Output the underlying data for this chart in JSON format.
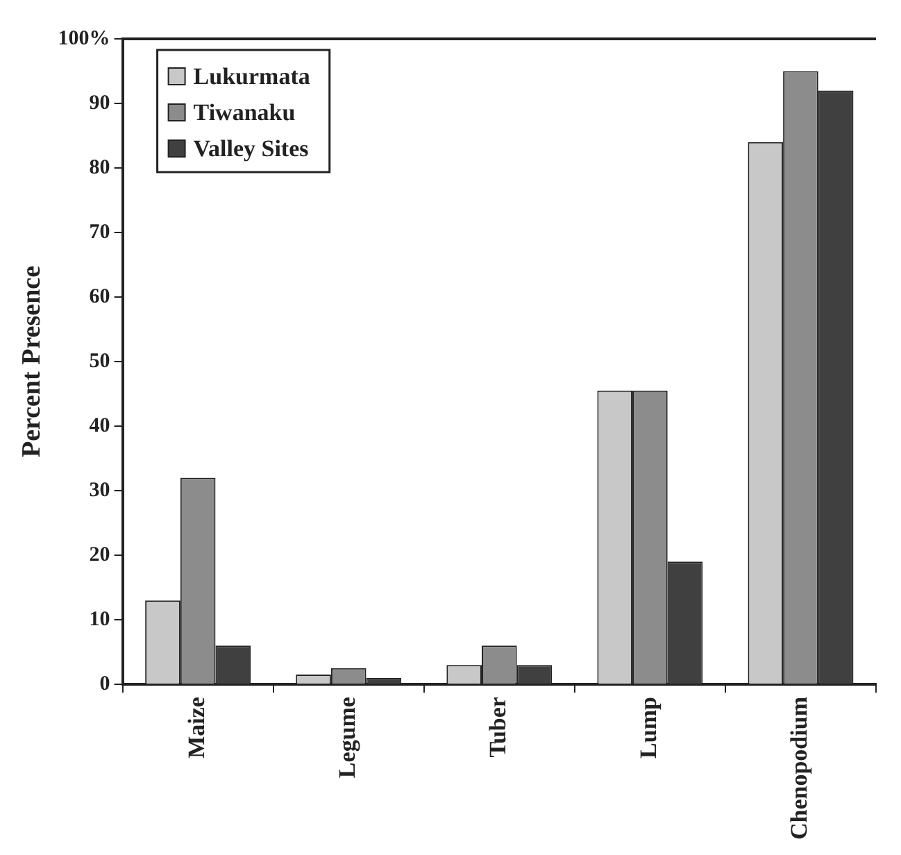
{
  "chart_data": {
    "type": "bar",
    "ylabel": "Percent Presence",
    "categories": [
      "Maize",
      "Legume",
      "Tuber",
      "Lump",
      "Chenopodium"
    ],
    "series": [
      {
        "name": "Lukurmata",
        "color": "#c8c8c8",
        "values": [
          13,
          1.5,
          3,
          45.5,
          84
        ]
      },
      {
        "name": "Tiwanaku",
        "color": "#8c8c8c",
        "values": [
          32,
          2.5,
          6,
          45.5,
          95
        ]
      },
      {
        "name": "Valley Sites",
        "color": "#404040",
        "values": [
          6,
          1,
          3,
          19,
          92
        ]
      }
    ],
    "ylim": [
      0,
      100
    ],
    "yticks": [
      0,
      10,
      20,
      30,
      40,
      50,
      60,
      70,
      80,
      90,
      {
        "value": 100,
        "label": "100%"
      }
    ],
    "grid": false,
    "legend": "top left"
  }
}
